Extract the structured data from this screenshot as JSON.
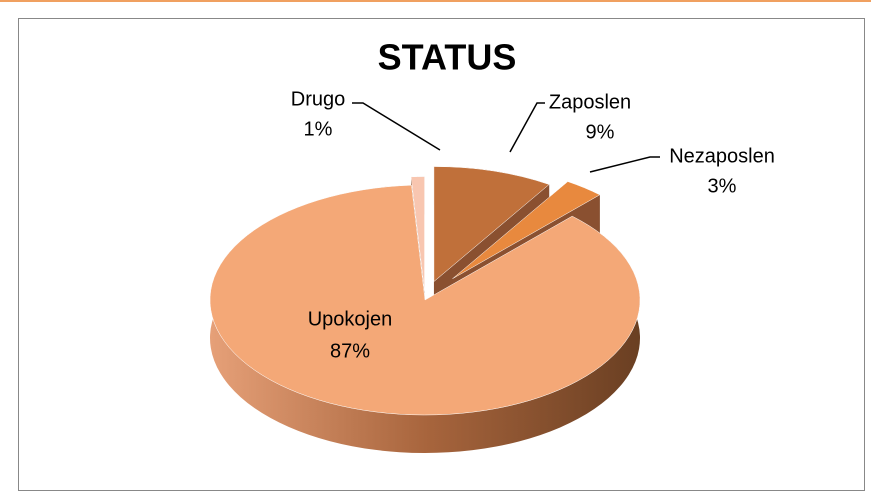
{
  "chart_data": {
    "type": "pie",
    "title": "STATUS",
    "categories": [
      "Zaposlen",
      "Nezaposlen",
      "Upokojen",
      "Drugo"
    ],
    "values": [
      9,
      3,
      87,
      1
    ],
    "value_labels": [
      "9%",
      "3%",
      "87%",
      "1%"
    ],
    "colors": [
      "#c0703a",
      "#e8893e",
      "#f4a877",
      "#f8c6b0"
    ]
  }
}
